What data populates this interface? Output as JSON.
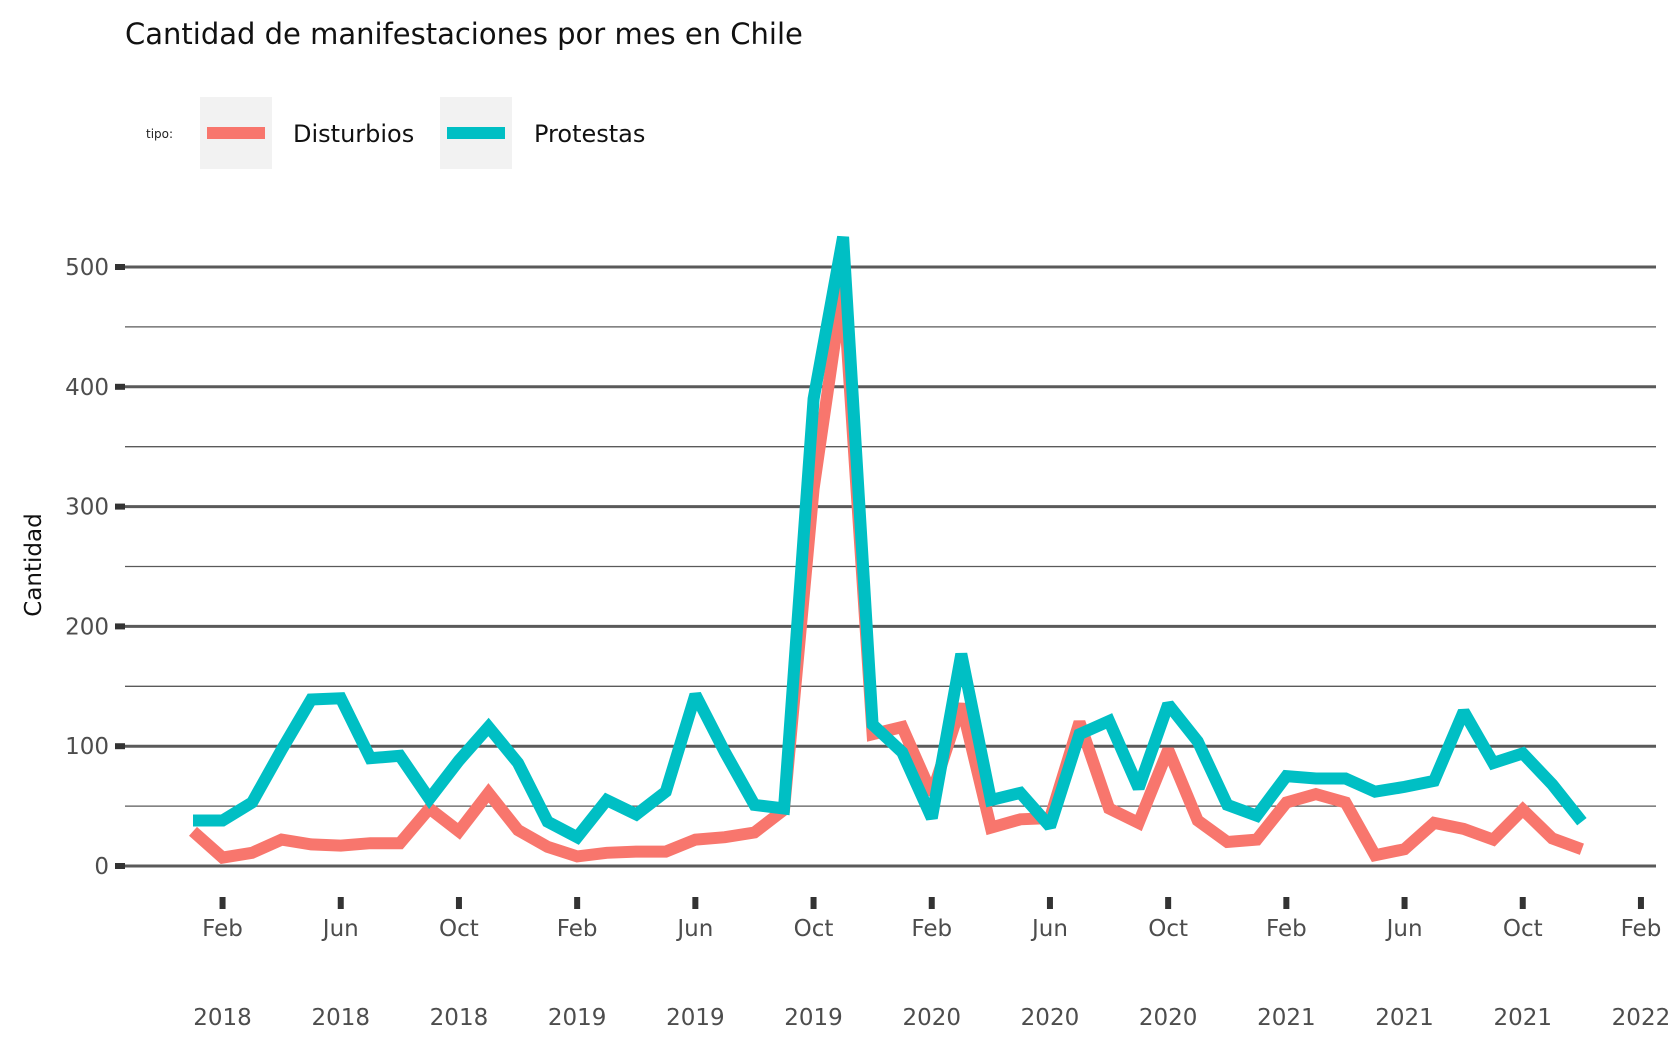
{
  "chart_data": {
    "type": "line",
    "title": "Cantidad de manifestaciones por mes en Chile",
    "xlabel": "",
    "ylabel": "Cantidad",
    "ylim": [
      0,
      525
    ],
    "y_ticks": [
      0,
      100,
      200,
      300,
      400,
      500
    ],
    "y_tick_labels": [
      "0",
      "100",
      "200",
      "300",
      "400",
      "500"
    ],
    "x_ticks": [
      {
        "date": "2018-02",
        "month": "Feb",
        "year": "2018"
      },
      {
        "date": "2018-06",
        "month": "Jun",
        "year": "2018"
      },
      {
        "date": "2018-10",
        "month": "Oct",
        "year": "2018"
      },
      {
        "date": "2019-02",
        "month": "Feb",
        "year": "2019"
      },
      {
        "date": "2019-06",
        "month": "Jun",
        "year": "2019"
      },
      {
        "date": "2019-10",
        "month": "Oct",
        "year": "2019"
      },
      {
        "date": "2020-02",
        "month": "Feb",
        "year": "2020"
      },
      {
        "date": "2020-06",
        "month": "Jun",
        "year": "2020"
      },
      {
        "date": "2020-10",
        "month": "Oct",
        "year": "2020"
      },
      {
        "date": "2021-02",
        "month": "Feb",
        "year": "2021"
      },
      {
        "date": "2021-06",
        "month": "Jun",
        "year": "2021"
      },
      {
        "date": "2021-10",
        "month": "Oct",
        "year": "2021"
      },
      {
        "date": "2022-02",
        "month": "Feb",
        "year": "2022"
      }
    ],
    "xlim": [
      "2017-12",
      "2022-03"
    ],
    "grid": true,
    "legend": {
      "title": "tipo:",
      "position": "top-left"
    },
    "x": [
      "2018-01",
      "2018-02",
      "2018-03",
      "2018-04",
      "2018-05",
      "2018-06",
      "2018-07",
      "2018-08",
      "2018-09",
      "2018-10",
      "2018-11",
      "2018-12",
      "2019-01",
      "2019-02",
      "2019-03",
      "2019-04",
      "2019-05",
      "2019-06",
      "2019-07",
      "2019-08",
      "2019-09",
      "2019-10",
      "2019-11",
      "2019-12",
      "2020-01",
      "2020-02",
      "2020-03",
      "2020-04",
      "2020-05",
      "2020-06",
      "2020-07",
      "2020-08",
      "2020-09",
      "2020-10",
      "2020-11",
      "2020-12",
      "2021-01",
      "2021-02",
      "2021-03",
      "2021-04",
      "2021-05",
      "2021-06",
      "2021-07",
      "2021-08",
      "2021-09",
      "2021-10",
      "2021-11",
      "2021-12"
    ],
    "series": [
      {
        "name": "Disturbios",
        "color": "#F8766D",
        "values": [
          29,
          7,
          11,
          22,
          18,
          17,
          19,
          19,
          48,
          29,
          61,
          30,
          16,
          8,
          11,
          12,
          12,
          22,
          24,
          28,
          47,
          315,
          485,
          110,
          116,
          60,
          135,
          32,
          39,
          40,
          120,
          48,
          36,
          97,
          38,
          20,
          22,
          53,
          60,
          53,
          9,
          14,
          36,
          31,
          22,
          47,
          23,
          14
        ]
      },
      {
        "name": "Protestas",
        "color": "#00BFC4",
        "values": [
          38,
          38,
          53,
          97,
          139,
          140,
          90,
          92,
          56,
          88,
          116,
          86,
          37,
          24,
          55,
          43,
          62,
          143,
          95,
          51,
          48,
          390,
          525,
          118,
          95,
          40,
          177,
          55,
          61,
          33,
          110,
          121,
          65,
          135,
          104,
          51,
          42,
          75,
          73,
          73,
          62,
          66,
          71,
          129,
          86,
          94,
          68,
          37
        ]
      }
    ]
  }
}
